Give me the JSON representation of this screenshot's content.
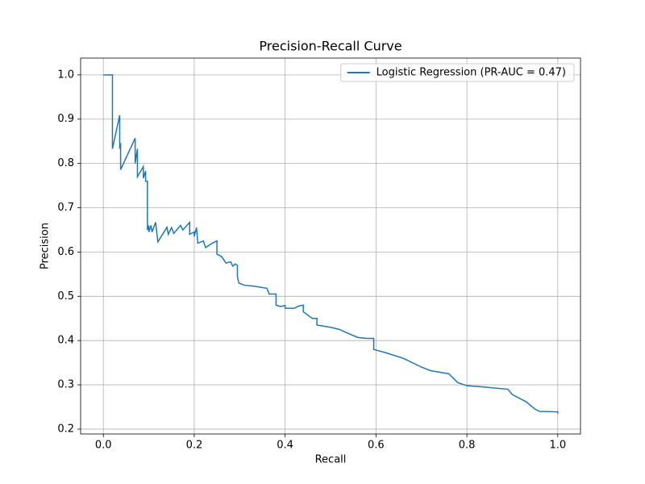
{
  "chart_data": {
    "type": "line",
    "title": "Precision-Recall Curve",
    "x_label": "Recall",
    "y_label": "Precision",
    "x": [
      0,
      0.02,
      0.02,
      0.036,
      0.036,
      0.038,
      0.038,
      0.07,
      0.07,
      0.075,
      0.075,
      0.088,
      0.088,
      0.093,
      0.093,
      0.097,
      0.097,
      0.1,
      0.1,
      0.105,
      0.107,
      0.115,
      0.12,
      0.14,
      0.143,
      0.15,
      0.155,
      0.17,
      0.175,
      0.19,
      0.19,
      0.2,
      0.2,
      0.205,
      0.208,
      0.22,
      0.225,
      0.24,
      0.25,
      0.25,
      0.26,
      0.27,
      0.28,
      0.285,
      0.29,
      0.295,
      0.295,
      0.298,
      0.31,
      0.33,
      0.36,
      0.365,
      0.38,
      0.38,
      0.39,
      0.4,
      0.4,
      0.42,
      0.43,
      0.44,
      0.44,
      0.46,
      0.47,
      0.47,
      0.5,
      0.52,
      0.53,
      0.56,
      0.58,
      0.595,
      0.595,
      0.62,
      0.66,
      0.7,
      0.72,
      0.76,
      0.78,
      0.8,
      0.84,
      0.89,
      0.9,
      0.93,
      0.95,
      0.96,
      1.0,
      1.0
    ],
    "series": [
      {
        "name": "Logistic Regression (PR-AUC = 0.47)",
        "color": "#1f77b4",
        "values": [
          1.0,
          1.0,
          0.833,
          0.909,
          0.833,
          0.846,
          0.786,
          0.857,
          0.8,
          0.833,
          0.77,
          0.793,
          0.767,
          0.783,
          0.76,
          0.76,
          0.65,
          0.66,
          0.645,
          0.66,
          0.645,
          0.667,
          0.623,
          0.656,
          0.64,
          0.655,
          0.642,
          0.66,
          0.65,
          0.667,
          0.64,
          0.645,
          0.635,
          0.655,
          0.62,
          0.625,
          0.61,
          0.62,
          0.625,
          0.595,
          0.59,
          0.575,
          0.578,
          0.568,
          0.573,
          0.57,
          0.545,
          0.53,
          0.525,
          0.523,
          0.518,
          0.505,
          0.505,
          0.48,
          0.477,
          0.479,
          0.473,
          0.473,
          0.478,
          0.48,
          0.465,
          0.45,
          0.45,
          0.435,
          0.43,
          0.425,
          0.42,
          0.407,
          0.405,
          0.405,
          0.38,
          0.373,
          0.36,
          0.34,
          0.332,
          0.325,
          0.305,
          0.298,
          0.295,
          0.29,
          0.278,
          0.262,
          0.245,
          0.24,
          0.239,
          0.235
        ]
      }
    ],
    "xlim": [
      -0.05,
      1.05
    ],
    "ylim": [
      0.189,
      1.038
    ],
    "xticks": [
      {
        "value": 0,
        "label": "0.0"
      },
      0.2,
      0.4,
      0.6,
      0.8,
      {
        "value": 1,
        "label": "1.0"
      }
    ],
    "yticks": [
      0.2,
      0.3,
      0.4,
      0.5,
      0.6,
      0.7,
      0.8,
      0.9,
      {
        "value": 1,
        "label": "1.0"
      }
    ],
    "grid": true,
    "legend": "upper right"
  }
}
